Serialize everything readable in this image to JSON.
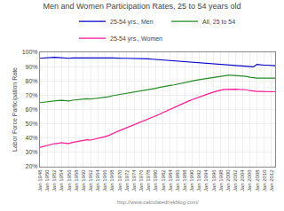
{
  "chart_data": {
    "type": "line",
    "title": "Men and Women Participation Rates, 25 to 54 years old",
    "ylabel": "Labor Force Participation Rate",
    "annotations": [
      "http://www.calculatedriskblog.com/"
    ],
    "x": [
      1948,
      1949,
      1950,
      1951,
      1952,
      1953,
      1954,
      1955,
      1956,
      1957,
      1958,
      1959,
      1960,
      1961,
      1962,
      1963,
      1964,
      1965,
      1966,
      1967,
      1968,
      1969,
      1970,
      1971,
      1972,
      1973,
      1974,
      1975,
      1976,
      1977,
      1978,
      1979,
      1980,
      1981,
      1982,
      1983,
      1984,
      1985,
      1986,
      1987,
      1988,
      1989,
      1990,
      1991,
      1992,
      1993,
      1994,
      1995,
      1996,
      1997,
      1998,
      1999,
      2000,
      2001,
      2002,
      2003,
      2004,
      2005,
      2006,
      2007,
      2008,
      2009,
      2010,
      2011,
      2012,
      2013
    ],
    "series": [
      {
        "name": "25-54 yrs., Men",
        "color": "#0000CD",
        "values": [
          0.958,
          0.96,
          0.963,
          0.964,
          0.965,
          0.963,
          0.96,
          0.958,
          0.958,
          0.96,
          0.961,
          0.962,
          0.962,
          0.963,
          0.961,
          0.96,
          0.959,
          0.958,
          0.958,
          0.96,
          0.96,
          0.958,
          0.958,
          0.958,
          0.958,
          0.958,
          0.958,
          0.957,
          0.956,
          0.955,
          0.954,
          0.952,
          0.95,
          0.948,
          0.946,
          0.944,
          0.942,
          0.94,
          0.938,
          0.936,
          0.934,
          0.932,
          0.93,
          0.928,
          0.926,
          0.924,
          0.922,
          0.92,
          0.918,
          0.916,
          0.914,
          0.912,
          0.91,
          0.908,
          0.906,
          0.904,
          0.904,
          0.902,
          0.9,
          0.898,
          0.916,
          0.912,
          0.91,
          0.91,
          0.908,
          0.906
        ]
      },
      {
        "name": "All, 25 to 54",
        "color": "#228B22",
        "values": [
          0.648,
          0.651,
          0.655,
          0.659,
          0.663,
          0.663,
          0.664,
          0.661,
          0.66,
          0.665,
          0.668,
          0.671,
          0.673,
          0.675,
          0.673,
          0.676,
          0.677,
          0.68,
          0.684,
          0.689,
          0.696,
          0.7,
          0.705,
          0.71,
          0.714,
          0.718,
          0.722,
          0.726,
          0.73,
          0.734,
          0.738,
          0.742,
          0.748,
          0.754,
          0.76,
          0.764,
          0.768,
          0.772,
          0.778,
          0.784,
          0.79,
          0.796,
          0.8,
          0.804,
          0.808,
          0.812,
          0.816,
          0.82,
          0.826,
          0.832,
          0.836,
          0.84,
          0.84,
          0.84,
          0.838,
          0.836,
          0.836,
          0.832,
          0.826,
          0.822,
          0.82,
          0.82,
          0.82,
          0.819,
          0.82,
          0.82
        ]
      },
      {
        "name": "25-54 yrs., Women",
        "color": "#FF1493",
        "values": [
          0.335,
          0.342,
          0.348,
          0.355,
          0.361,
          0.363,
          0.368,
          0.363,
          0.362,
          0.37,
          0.375,
          0.38,
          0.384,
          0.388,
          0.386,
          0.392,
          0.395,
          0.402,
          0.41,
          0.418,
          0.432,
          0.442,
          0.452,
          0.462,
          0.472,
          0.482,
          0.492,
          0.502,
          0.512,
          0.522,
          0.532,
          0.542,
          0.554,
          0.566,
          0.578,
          0.59,
          0.6,
          0.61,
          0.622,
          0.634,
          0.646,
          0.658,
          0.668,
          0.678,
          0.688,
          0.698,
          0.706,
          0.714,
          0.722,
          0.73,
          0.736,
          0.74,
          0.742,
          0.743,
          0.742,
          0.74,
          0.74,
          0.738,
          0.732,
          0.728,
          0.726,
          0.726,
          0.724,
          0.724,
          0.724,
          0.724
        ]
      }
    ],
    "xlim": [
      1948,
      2013
    ],
    "xticks": [
      {
        "value": 1948,
        "label": "Jan 1948"
      },
      {
        "value": 1950,
        "label": "Jan 1950"
      },
      {
        "value": 1952,
        "label": "Jan 1952"
      },
      {
        "value": 1954,
        "label": "Jan 1954"
      },
      {
        "value": 1956,
        "label": "Jan 1956"
      },
      {
        "value": 1958,
        "label": "Jan 1958"
      },
      {
        "value": 1960,
        "label": "Jan 1960"
      },
      {
        "value": 1962,
        "label": "Jan 1962"
      },
      {
        "value": 1964,
        "label": "Jan 1964"
      },
      {
        "value": 1966,
        "label": "Jan 1966"
      },
      {
        "value": 1968,
        "label": "Jan 1968"
      },
      {
        "value": 1970,
        "label": "Jan 1970"
      },
      {
        "value": 1972,
        "label": "Jan 1972"
      },
      {
        "value": 1974,
        "label": "Jan 1974"
      },
      {
        "value": 1976,
        "label": "Jan 1976"
      },
      {
        "value": 1978,
        "label": "Jan 1978"
      },
      {
        "value": 1980,
        "label": "Jan 1980"
      },
      {
        "value": 1982,
        "label": "Jan 1982"
      },
      {
        "value": 1984,
        "label": "Jan 1984"
      },
      {
        "value": 1986,
        "label": "Jan 1986"
      },
      {
        "value": 1988,
        "label": "Jan 1988"
      },
      {
        "value": 1990,
        "label": "Jan 1990"
      },
      {
        "value": 1992,
        "label": "Jan 1992"
      },
      {
        "value": 1994,
        "label": "Jan 1994"
      },
      {
        "value": 1996,
        "label": "Jan 1996"
      },
      {
        "value": 1998,
        "label": "Jan 1998"
      },
      {
        "value": 2000,
        "label": "Jan 2000"
      },
      {
        "value": 2002,
        "label": "Jan 2002"
      },
      {
        "value": 2004,
        "label": "Jan 2004"
      },
      {
        "value": 2006,
        "label": "Jan 2006"
      },
      {
        "value": 2008,
        "label": "Jan 2008"
      },
      {
        "value": 2010,
        "label": "Jan 2010"
      },
      {
        "value": 2012,
        "label": "Jan 2012"
      }
    ],
    "ylim": [
      0.2,
      1.0
    ],
    "yticks": [
      {
        "value": 0.2,
        "label": "20%"
      },
      {
        "value": 0.3,
        "label": "30%"
      },
      {
        "value": 0.4,
        "label": "40%"
      },
      {
        "value": 0.5,
        "label": "50%"
      },
      {
        "value": 0.6,
        "label": "60%"
      },
      {
        "value": 0.7,
        "label": "70%"
      },
      {
        "value": 0.8,
        "label": "80%"
      },
      {
        "value": 0.9,
        "label": "90%"
      },
      {
        "value": 1.0,
        "label": "100%"
      }
    ],
    "grid": true,
    "legend": "top"
  }
}
